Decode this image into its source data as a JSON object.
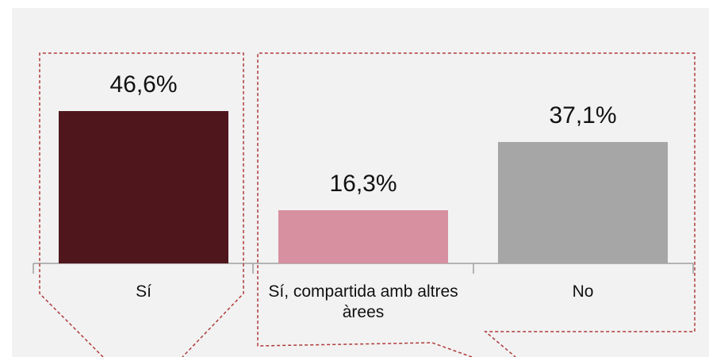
{
  "chart_data": {
    "type": "bar",
    "categories": [
      "Sí",
      "Sí, compartida amb altres àrees",
      "No"
    ],
    "values": [
      46.6,
      16.3,
      37.1
    ],
    "value_labels": [
      "46,6%",
      "16,3%",
      "37,1%"
    ],
    "colors": [
      "#4f161c",
      "#d6909f",
      "#a6a6a6"
    ]
  }
}
